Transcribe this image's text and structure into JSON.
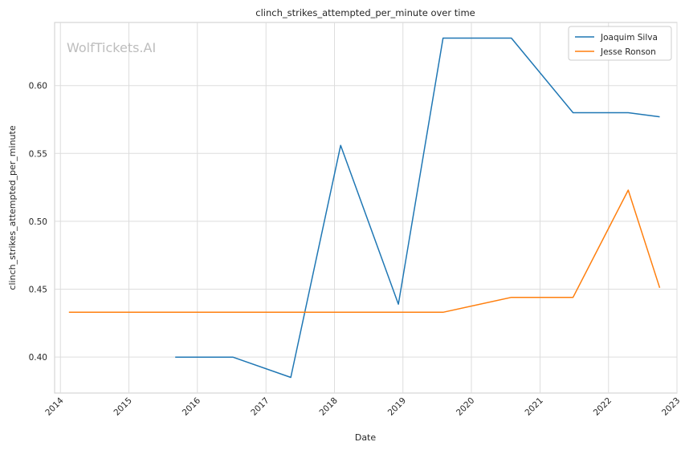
{
  "chart_data": {
    "type": "line",
    "title": "clinch_strikes_attempted_per_minute over time",
    "xlabel": "Date",
    "ylabel": "clinch_strikes_attempted_per_minute",
    "watermark": "WolfTickets.AI",
    "x_ticks": [
      "2014",
      "2015",
      "2016",
      "2017",
      "2018",
      "2019",
      "2020",
      "2021",
      "2022",
      "2023"
    ],
    "y_ticks": [
      "0.40",
      "0.45",
      "0.50",
      "0.55",
      "0.60"
    ],
    "xlim": [
      "2013-12-01",
      "2023-01-01"
    ],
    "ylim": [
      0.3735,
      0.6465
    ],
    "grid": true,
    "legend_position": "top-right",
    "series": [
      {
        "name": "Joaquim Silva",
        "color": "#1f77b4",
        "points": [
          {
            "x": "2015-09-05",
            "y": 0.4
          },
          {
            "x": "2016-07-08",
            "y": 0.4
          },
          {
            "x": "2017-05-13",
            "y": 0.385
          },
          {
            "x": "2018-02-03",
            "y": 0.556
          },
          {
            "x": "2018-12-08",
            "y": 0.439
          },
          {
            "x": "2019-08-03",
            "y": 0.635
          },
          {
            "x": "2020-08-01",
            "y": 0.635
          },
          {
            "x": "2021-06-26",
            "y": 0.58
          },
          {
            "x": "2022-04-16",
            "y": 0.58
          },
          {
            "x": "2022-10-01",
            "y": 0.577
          }
        ]
      },
      {
        "name": "Jesse Ronson",
        "color": "#ff7f0e",
        "points": [
          {
            "x": "2014-02-15",
            "y": 0.433
          },
          {
            "x": "2019-08-03",
            "y": 0.433
          },
          {
            "x": "2020-08-01",
            "y": 0.444
          },
          {
            "x": "2021-06-26",
            "y": 0.444
          },
          {
            "x": "2022-04-16",
            "y": 0.523
          },
          {
            "x": "2022-10-01",
            "y": 0.451
          }
        ]
      }
    ]
  }
}
